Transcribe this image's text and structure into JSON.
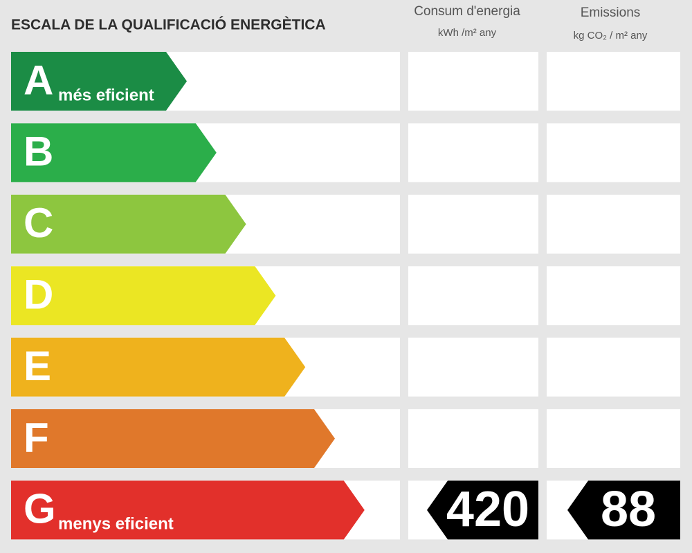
{
  "header": {
    "title": "ESCALA DE LA QUALIFICACIÓ ENERGÈTICA",
    "columns": [
      {
        "title": "Consum d'energia",
        "unit": "kWh /m² any"
      },
      {
        "title": "Emissions",
        "unit": "kg CO₂ / m² any"
      }
    ]
  },
  "rows": [
    {
      "letter": "A",
      "note": "més eficient",
      "color": "#1b8c45"
    },
    {
      "letter": "B",
      "color": "#2bae4a"
    },
    {
      "letter": "C",
      "color": "#8dc63f"
    },
    {
      "letter": "D",
      "color": "#ebe623"
    },
    {
      "letter": "E",
      "color": "#efb21d"
    },
    {
      "letter": "F",
      "color": "#e0782b"
    },
    {
      "letter": "G",
      "note": "menys eficient",
      "color": "#e2302b",
      "consumption": 420,
      "emissions": 88
    }
  ]
}
